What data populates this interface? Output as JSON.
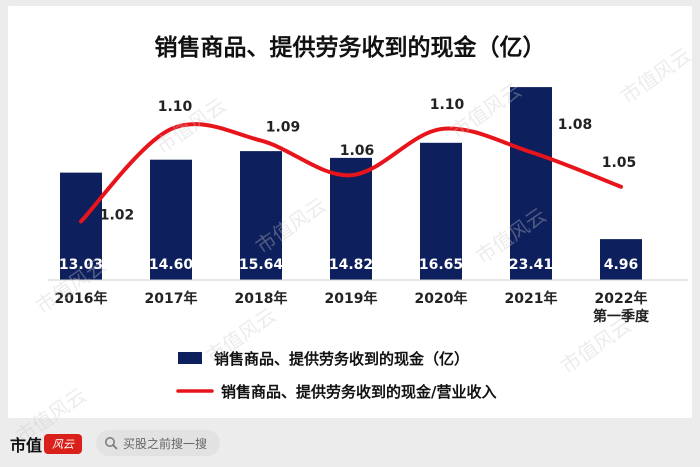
{
  "chart_data": {
    "type": "bar+line",
    "title": "销售商品、提供劳务收到的现金（亿）",
    "categories": [
      "2016年",
      "2017年",
      "2018年",
      "2019年",
      "2020年",
      "2021年",
      "2022年\n第一季度"
    ],
    "series": [
      {
        "name": "销售商品、提供劳务收到的现金（亿）",
        "type": "bar",
        "values": [
          13.03,
          14.6,
          15.64,
          14.82,
          16.65,
          23.41,
          4.96
        ],
        "labels": [
          "13.03",
          "14.60",
          "15.64",
          "14.82",
          "16.65",
          "23.41",
          "4.96"
        ],
        "color": "#0d1f5c"
      },
      {
        "name": "销售商品、提供劳务收到的现金/营业收入",
        "type": "line",
        "values": [
          1.02,
          1.1,
          1.09,
          1.06,
          1.1,
          1.08,
          1.05
        ],
        "labels": [
          "1.02",
          "1.10",
          "1.09",
          "1.06",
          "1.10",
          "1.08",
          "1.05"
        ],
        "color": "#e8141b"
      }
    ],
    "bar_ylim": [
      0,
      25
    ],
    "line_ylim": [
      0.99,
      1.12
    ],
    "grid": false,
    "legend_position": "bottom"
  },
  "watermark": "市值风云",
  "footer": {
    "brand": "市值",
    "brand_seal": "风云",
    "search_icon": "search-icon",
    "search_text": "买股之前搜一搜"
  }
}
